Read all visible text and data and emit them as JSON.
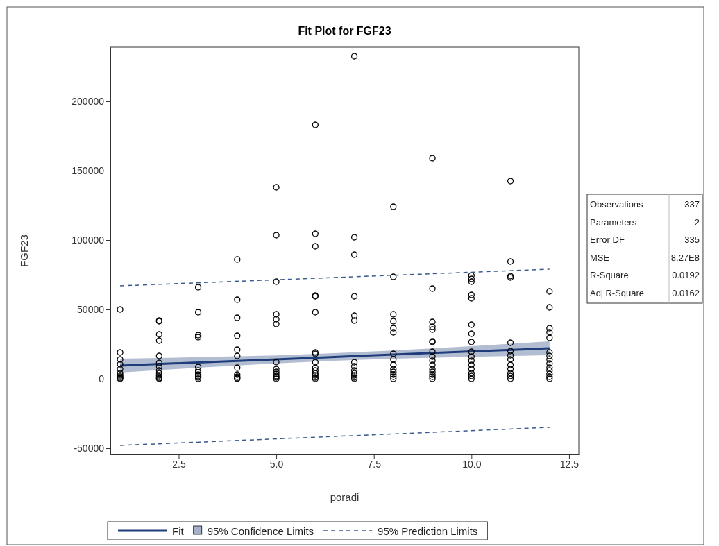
{
  "chart_data": {
    "type": "scatter",
    "title": "Fit Plot for FGF23",
    "xlabel": "poradi",
    "ylabel": "FGF23",
    "xlim": [
      0.75,
      12.75
    ],
    "xticks": [
      {
        "value": 2.5,
        "label": "2.5"
      },
      {
        "value": 5,
        "label": "5.0"
      },
      {
        "value": 7.5,
        "label": "7.5"
      },
      {
        "value": 10,
        "label": "10.0"
      },
      {
        "value": 12.5,
        "label": "12.5"
      }
    ],
    "ylim": [
      -54500,
      239000
    ],
    "yticks": [
      -50000,
      0,
      50000,
      100000,
      150000,
      200000
    ],
    "grid": false,
    "legend": "bottom",
    "legend_title": "95% Confidence Limits",
    "annotations": [
      "Observations 337",
      "Parameters 2",
      "Error DF 335",
      "MSE 8.27E8",
      "R-Square 0.0192",
      "Adj R-Square 0.0162"
    ],
    "series": [
      {
        "type": "line",
        "name": "Fit",
        "color": "#1f3d7a",
        "line_style": "solid",
        "x": [
          1,
          3,
          5,
          6.5,
          8,
          10,
          12
        ],
        "values": [
          9500,
          11800,
          14000,
          15800,
          17500,
          19700,
          22000
        ],
        "lower": [
          4500,
          8000,
          11100,
          13000,
          14500,
          15900,
          17000
        ],
        "upper": [
          14500,
          15600,
          16900,
          18500,
          20400,
          23500,
          27000
        ]
      },
      {
        "marker": "circle",
        "color": "#000000",
        "x": [
          1,
          1,
          1,
          1,
          1,
          1,
          1,
          1,
          1,
          1,
          2,
          2,
          2,
          2,
          2,
          2,
          2,
          2,
          2,
          2,
          2,
          2,
          2,
          3,
          3,
          3,
          3,
          3,
          3,
          3,
          3,
          3,
          3,
          3,
          4,
          4,
          4,
          4,
          4,
          4,
          4,
          4,
          4,
          4,
          4,
          5,
          5,
          5,
          5,
          5,
          5,
          5,
          5,
          5,
          5,
          5,
          5,
          5,
          6,
          6,
          6,
          6,
          6,
          6,
          6,
          6,
          6,
          6,
          6,
          6,
          6,
          6,
          6,
          7,
          7,
          7,
          7,
          7,
          7,
          7,
          7,
          7,
          7,
          7,
          7,
          7,
          8,
          8,
          8,
          8,
          8,
          8,
          8,
          8,
          8,
          8,
          8,
          8,
          8,
          8,
          9,
          9,
          9,
          9,
          9,
          9,
          9,
          9,
          9,
          9,
          9,
          9,
          9,
          9,
          9,
          9,
          10,
          10,
          10,
          10,
          10,
          10,
          10,
          10,
          10,
          10,
          10,
          10,
          10,
          10,
          10,
          10,
          11,
          11,
          11,
          11,
          11,
          11,
          11,
          11,
          11,
          11,
          11,
          11,
          11,
          12,
          12,
          12,
          12,
          12,
          12,
          12,
          12,
          12,
          12,
          12,
          12,
          12,
          12
        ],
        "values": [
          50000,
          19000,
          14000,
          10500,
          7000,
          4000,
          1500,
          0,
          500,
          2500,
          42000,
          41500,
          32000,
          27500,
          16500,
          11500,
          9000,
          6000,
          4000,
          2500,
          1500,
          500,
          0,
          66000,
          48000,
          31500,
          30000,
          8500,
          6000,
          4500,
          3000,
          2000,
          1000,
          0,
          86000,
          57000,
          44000,
          31000,
          21000,
          16500,
          8000,
          3000,
          1500,
          0,
          500,
          138000,
          103500,
          70000,
          46500,
          43000,
          39500,
          12000,
          7000,
          5000,
          3500,
          2000,
          1000,
          0,
          183000,
          104500,
          95500,
          60000,
          59500,
          48000,
          19000,
          18000,
          12000,
          8000,
          6000,
          4000,
          2500,
          1000,
          0,
          232500,
          102000,
          89500,
          59500,
          45500,
          42000,
          12000,
          9000,
          6000,
          4000,
          2500,
          1000,
          0,
          124000,
          73500,
          46500,
          41500,
          36500,
          33500,
          18000,
          14000,
          10000,
          7000,
          5000,
          3000,
          1500,
          0,
          159000,
          65000,
          41000,
          37500,
          35500,
          27000,
          26500,
          19500,
          16000,
          13000,
          10000,
          7000,
          5000,
          3000,
          1500,
          0,
          74500,
          72000,
          70000,
          60500,
          58000,
          39000,
          32500,
          26500,
          19500,
          16000,
          13000,
          10000,
          7000,
          4000,
          2000,
          0,
          142500,
          84500,
          74000,
          73000,
          26000,
          20000,
          17000,
          14000,
          10000,
          7000,
          4000,
          2000,
          0,
          63000,
          51500,
          36500,
          33500,
          29500,
          19000,
          16500,
          14000,
          11000,
          8000,
          6000,
          3500,
          1500,
          0
        ]
      },
      {
        "type": "line",
        "name": "95% Prediction Limits",
        "color": "#3a5a8c",
        "line_style": "dashed",
        "x": [
          1,
          12
        ],
        "values": [
          67000,
          79000
        ]
      },
      {
        "type": "line",
        "color": "#3a5a8c",
        "line_style": "dashed",
        "x": [
          1,
          12
        ],
        "values": [
          -48000,
          -35000
        ]
      }
    ]
  }
}
